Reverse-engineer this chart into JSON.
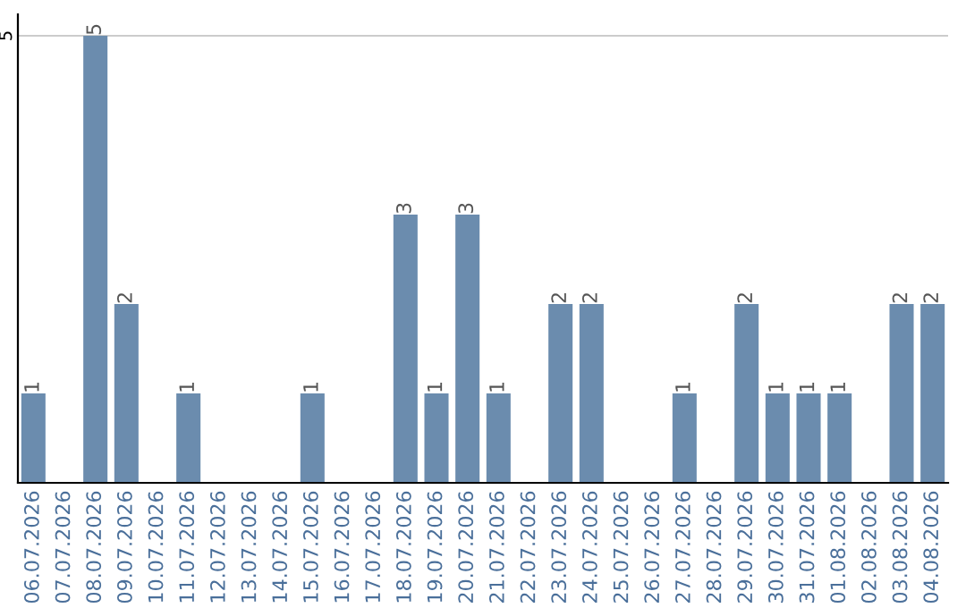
{
  "chart_data": {
    "type": "bar",
    "categories": [
      "06.07.2026",
      "07.07.2026",
      "08.07.2026",
      "09.07.2026",
      "10.07.2026",
      "11.07.2026",
      "12.07.2026",
      "13.07.2026",
      "14.07.2026",
      "15.07.2026",
      "16.07.2026",
      "17.07.2026",
      "18.07.2026",
      "19.07.2026",
      "20.07.2026",
      "21.07.2026",
      "22.07.2026",
      "23.07.2026",
      "24.07.2026",
      "25.07.2026",
      "26.07.2026",
      "27.07.2026",
      "28.07.2026",
      "29.07.2026",
      "30.07.2026",
      "31.07.2026",
      "01.08.2026",
      "02.08.2026",
      "03.08.2026",
      "04.08.2026"
    ],
    "values": [
      1,
      0,
      5,
      2,
      0,
      1,
      0,
      0,
      0,
      1,
      0,
      0,
      3,
      1,
      3,
      1,
      0,
      2,
      2,
      0,
      0,
      1,
      0,
      2,
      1,
      1,
      1,
      0,
      2,
      2
    ],
    "value_labels": [
      "1",
      null,
      "5",
      "2",
      null,
      "1",
      null,
      null,
      null,
      "1",
      null,
      null,
      "3",
      "1",
      "3",
      "1",
      null,
      "2",
      "2",
      null,
      null,
      "1",
      null,
      "2",
      "1",
      "1",
      "1",
      null,
      "2",
      "2"
    ],
    "color": "#6b8cae",
    "ylim": [
      0,
      5.24
    ],
    "yticks": [
      5
    ],
    "grid": "y"
  }
}
